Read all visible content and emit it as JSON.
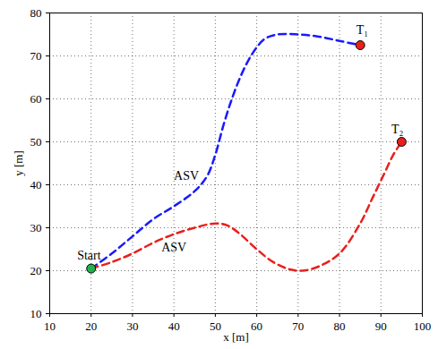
{
  "chart_data": {
    "type": "line",
    "x_label": "x [m]",
    "y_label": "y [m]",
    "xlim": [
      10,
      100
    ],
    "ylim": [
      10,
      80
    ],
    "xticks": [
      10,
      20,
      30,
      40,
      50,
      60,
      70,
      80,
      90,
      100
    ],
    "yticks": [
      10,
      20,
      30,
      40,
      50,
      60,
      70,
      80
    ],
    "grid": true,
    "series": [
      {
        "name": "ASV",
        "color": "#1a1aff",
        "line_style": "dashed",
        "x": [
          20,
          25,
          30,
          35,
          40,
          45,
          48,
          50,
          52,
          54,
          56,
          58,
          60,
          62,
          65,
          70,
          75,
          80,
          85
        ],
        "values": [
          20.5,
          24,
          28,
          32,
          35,
          38.5,
          42,
          47,
          54,
          60,
          65,
          69,
          72,
          74,
          75,
          75,
          74.5,
          73.5,
          72.5
        ]
      },
      {
        "name": "ASV",
        "color": "#e8201c",
        "line_style": "dashed",
        "x": [
          20,
          25,
          30,
          35,
          40,
          45,
          50,
          53,
          56,
          60,
          64,
          68,
          71,
          75,
          80,
          85,
          88,
          91,
          93,
          95
        ],
        "values": [
          20.5,
          22,
          24,
          26.5,
          28.5,
          30,
          31,
          30.5,
          28.5,
          25,
          22,
          20.3,
          20,
          21,
          24,
          31,
          37,
          43,
          47,
          50
        ]
      }
    ],
    "points": [
      {
        "name": "Start",
        "x": 20,
        "y": 20.5,
        "color": "#22b14c",
        "marker": "circle"
      },
      {
        "name": "T₁",
        "x": 85,
        "y": 72.5,
        "color": "#e8201c",
        "marker": "circle"
      },
      {
        "name": "T₂",
        "x": 95,
        "y": 50,
        "color": "#e8201c",
        "marker": "circle"
      }
    ],
    "annotations": [
      {
        "text": "Start",
        "x": 19.5,
        "y": 23.5
      },
      {
        "text": "T₁",
        "x": 85.5,
        "y": 76
      },
      {
        "text": "T₂",
        "x": 94,
        "y": 53
      },
      {
        "text": "ASV",
        "x": 43,
        "y": 42
      },
      {
        "text": "ASV",
        "x": 40,
        "y": 25.5
      }
    ]
  }
}
